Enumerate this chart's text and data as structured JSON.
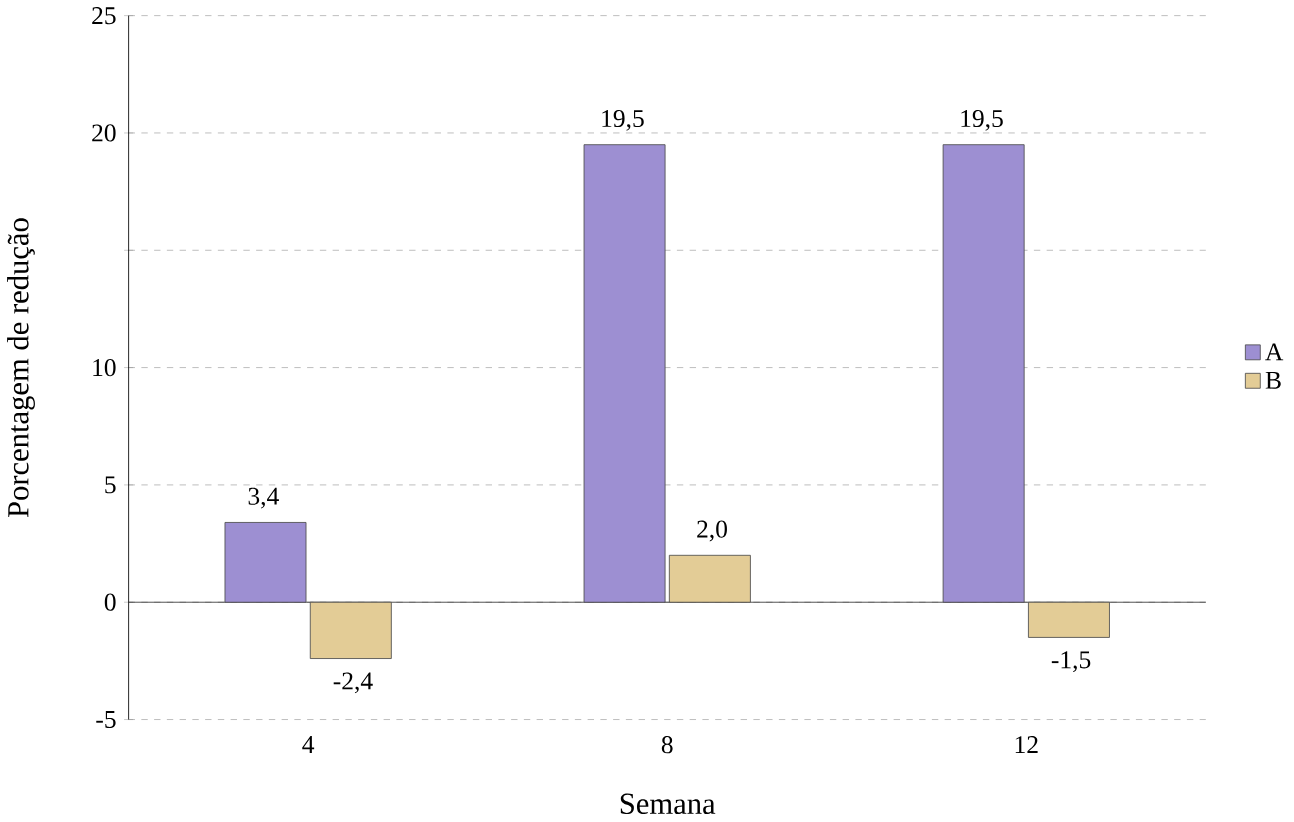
{
  "chart_data": {
    "type": "bar",
    "xlabel": "Semana",
    "ylabel": "Porcentagem de redução",
    "categories": [
      "4",
      "8",
      "12"
    ],
    "series": [
      {
        "name": "A",
        "color": "#9d8fd2",
        "values": [
          3.4,
          19.5,
          19.5
        ],
        "value_labels": [
          "3,4",
          "19,5",
          "19,5"
        ]
      },
      {
        "name": "B",
        "color": "#e3cc96",
        "values": [
          -2.4,
          2.0,
          -1.5
        ],
        "value_labels": [
          "-2,4",
          "2,0",
          "-1,5"
        ]
      }
    ],
    "ylim": [
      -5,
      25
    ],
    "yticks": [
      -5,
      0,
      5,
      10,
      {
        "value": 15,
        "label": null
      },
      20,
      25
    ],
    "grid": "y",
    "legend": "right"
  }
}
